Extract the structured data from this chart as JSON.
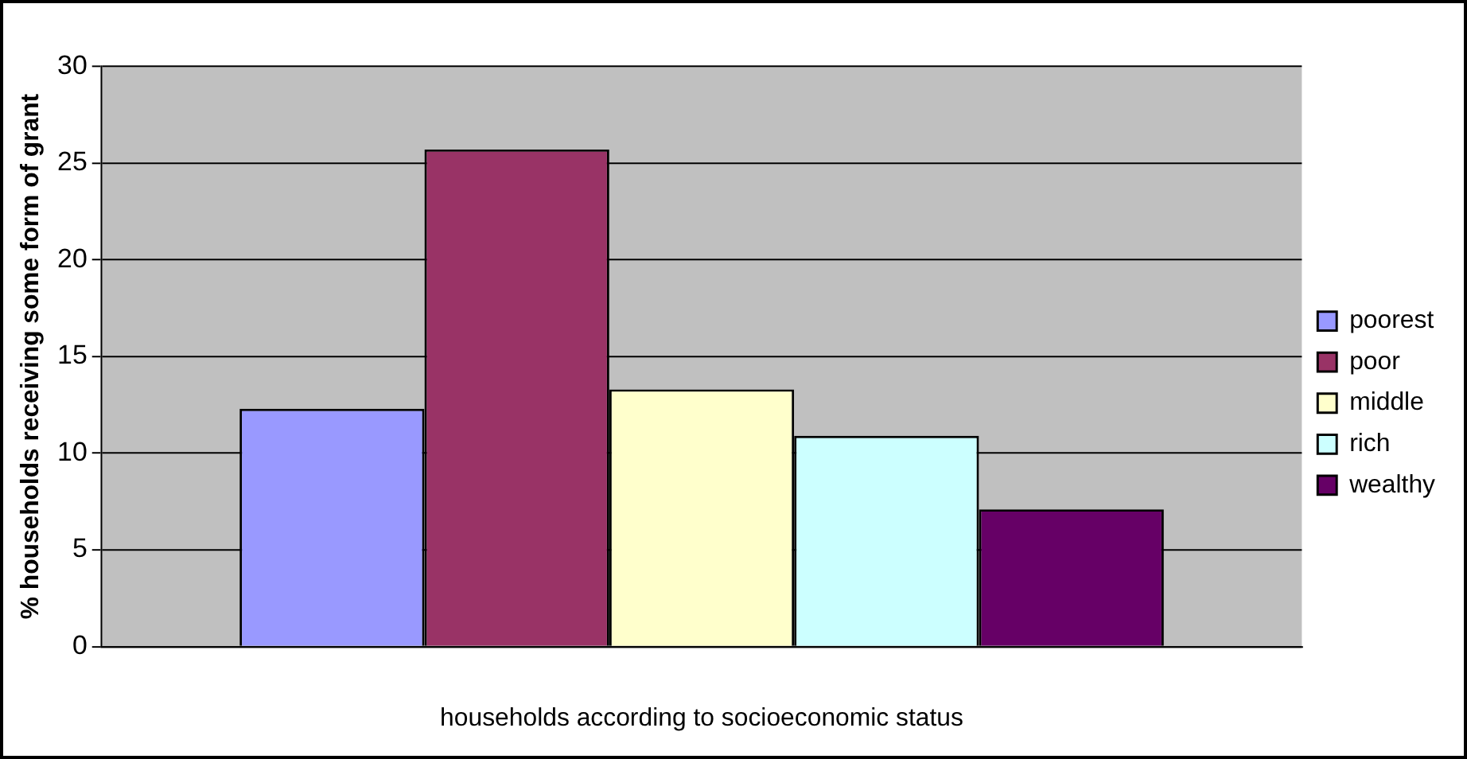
{
  "chart_data": {
    "type": "bar",
    "xlabel": "households according to socioeconomic status",
    "ylabel": "% households receiving some form of grant",
    "categories": [
      null
    ],
    "series": [
      {
        "name": "poorest",
        "color": "#9999ff",
        "values": [
          12.3
        ]
      },
      {
        "name": "poor",
        "color": "#993366",
        "values": [
          25.7
        ]
      },
      {
        "name": "middle",
        "color": "#ffffcc",
        "values": [
          13.3
        ]
      },
      {
        "name": "rich",
        "color": "#ccffff",
        "values": [
          10.9
        ]
      },
      {
        "name": "wealthy",
        "color": "#660066",
        "values": [
          7.1
        ]
      }
    ],
    "ylim": [
      0,
      30
    ],
    "yticks": [
      0,
      5,
      10,
      15,
      20,
      25,
      30
    ],
    "grid": "y",
    "legend": "right"
  }
}
